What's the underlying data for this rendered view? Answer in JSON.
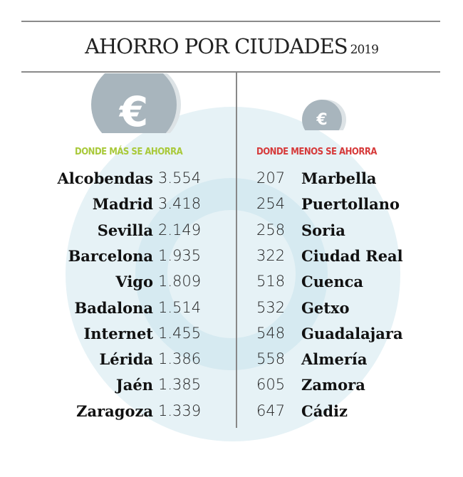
{
  "title": "AHORRO POR CIUDADES",
  "year": "2019",
  "colors": {
    "most": "#a9c93a",
    "least": "#d63a3a",
    "coin": "#a8b5bd",
    "watermark": "#e6f2f6"
  },
  "icons": {
    "coin": "euro-coin-icon"
  },
  "chart_data": {
    "type": "table",
    "most": {
      "heading": "DONDE MÁS SE AHORRA",
      "rows": [
        {
          "city": "Alcobendas",
          "value": "3.554"
        },
        {
          "city": "Madrid",
          "value": "3.418"
        },
        {
          "city": "Sevilla",
          "value": "2.149"
        },
        {
          "city": "Barcelona",
          "value": "1.935"
        },
        {
          "city": "Vigo",
          "value": "1.809"
        },
        {
          "city": "Badalona",
          "value": "1.514"
        },
        {
          "city": "Internet",
          "value": "1.455"
        },
        {
          "city": "Lérida",
          "value": "1.386"
        },
        {
          "city": "Jaén",
          "value": "1.385"
        },
        {
          "city": "Zaragoza",
          "value": "1.339"
        }
      ]
    },
    "least": {
      "heading": "DONDE MENOS SE AHORRA",
      "rows": [
        {
          "city": "Marbella",
          "value": "207"
        },
        {
          "city": "Puertollano",
          "value": "254"
        },
        {
          "city": "Soria",
          "value": "258"
        },
        {
          "city": "Ciudad Real",
          "value": "322"
        },
        {
          "city": "Cuenca",
          "value": "518"
        },
        {
          "city": "Getxo",
          "value": "532"
        },
        {
          "city": "Guadalajara",
          "value": "548"
        },
        {
          "city": "Almería",
          "value": "558"
        },
        {
          "city": "Zamora",
          "value": "605"
        },
        {
          "city": "Cádiz",
          "value": "647"
        }
      ]
    }
  }
}
